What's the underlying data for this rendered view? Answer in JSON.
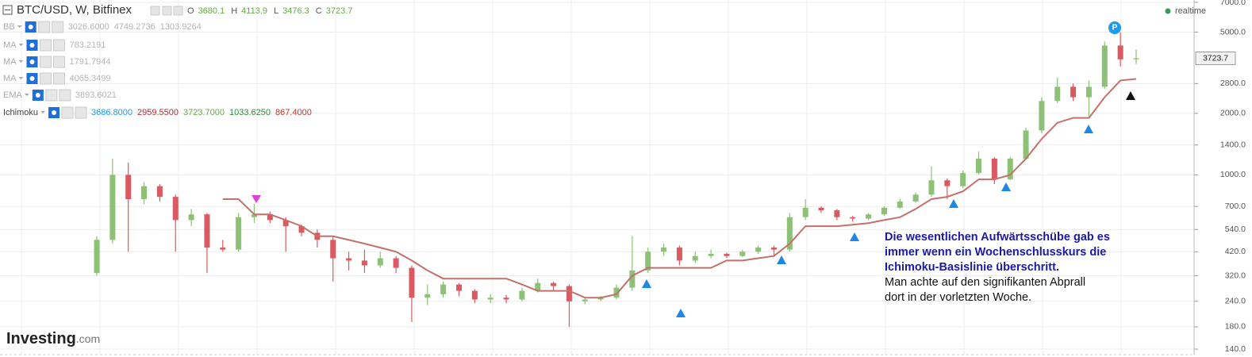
{
  "header": {
    "symbol": "BTC/USD, W, Bitfinex",
    "ohlc": [
      {
        "key": "O",
        "value": "3680.1"
      },
      {
        "key": "H",
        "value": "4113.9"
      },
      {
        "key": "L",
        "value": "3476.3"
      },
      {
        "key": "C",
        "value": "3723.7"
      }
    ]
  },
  "indicators": [
    {
      "name": "BB",
      "values": [
        "3026.6000",
        "4749.2736",
        "1303.9264"
      ],
      "colors": [
        "#b5b5b5",
        "#b5b5b5",
        "#b5b5b5"
      ]
    },
    {
      "name": "MA",
      "values": [
        "783.2191"
      ],
      "colors": [
        "#b5b5b5"
      ]
    },
    {
      "name": "MA",
      "values": [
        "1791.7944"
      ],
      "colors": [
        "#b5b5b5"
      ]
    },
    {
      "name": "MA",
      "values": [
        "4065.3499"
      ],
      "colors": [
        "#b5b5b5"
      ]
    },
    {
      "name": "EMA",
      "values": [
        "3893.6021"
      ],
      "colors": [
        "#b5b5b5"
      ]
    },
    {
      "name": "Ichimoku",
      "values": [
        "3686.8000",
        "2959.5500",
        "3723.7000",
        "1033.6250",
        "867.4000"
      ],
      "colors": [
        "#2196f3",
        "#a8333a",
        "#6aa84f",
        "#2e8b3a",
        "#c0392b"
      ]
    }
  ],
  "realtime": "realtime",
  "marker_label": "P",
  "annotation": {
    "blue": [
      "Die wesentlichen Aufwärtsschübe gab es",
      "immer wenn ein Wochenschlusskurs die",
      "Ichimoku-Basislinie überschritt."
    ],
    "black": [
      "Man achte auf den signifikanten Abprall",
      "dort in der vorletzten Woche."
    ]
  },
  "logo": {
    "main": "Investing",
    "suffix": ".com"
  },
  "chart_data": {
    "type": "candlestick",
    "log_scale": true,
    "grid": true,
    "up_color": "#8cc176",
    "down_color": "#db5a62",
    "kijun_color": "#c4706b",
    "ylim": [
      131.5,
      7188
    ],
    "yticks": [
      {
        "value": 140,
        "label": "140.0"
      },
      {
        "value": 180,
        "label": "180.0"
      },
      {
        "value": 240,
        "label": "240.0"
      },
      {
        "value": 320,
        "label": "320.0"
      },
      {
        "value": 420,
        "label": "420.0"
      },
      {
        "value": 540,
        "label": "540.0"
      },
      {
        "value": 700,
        "label": "700.0"
      },
      {
        "value": 1000,
        "label": "1000.0"
      },
      {
        "value": 1400,
        "label": "1400.0"
      },
      {
        "value": 2000,
        "label": "2000.0"
      },
      {
        "value": 2800,
        "label": "2800.0"
      },
      {
        "value": 5000,
        "label": "5000.0"
      },
      {
        "value": 7000,
        "label": "7000.0"
      }
    ],
    "last_price": {
      "value": 3723.7,
      "label": "3723.7"
    },
    "open": [
      330,
      480,
      1000,
      760,
      880,
      780,
      600,
      640,
      440,
      430,
      620,
      640,
      600,
      560,
      520,
      480,
      390,
      380,
      360,
      390,
      350,
      250,
      260,
      290,
      270,
      245,
      250,
      245,
      270,
      295,
      285,
      240,
      245,
      250,
      280,
      340,
      420,
      440,
      380,
      400,
      410,
      400,
      420,
      440,
      430,
      620,
      690,
      670,
      620,
      610,
      640,
      690,
      740,
      800,
      940,
      880,
      1020,
      1200,
      950,
      1200,
      1650,
      2300,
      2700,
      2400,
      2700,
      4300,
      3680.1
    ],
    "high": [
      500,
      1200,
      1150,
      920,
      900,
      800,
      680,
      650,
      480,
      650,
      720,
      660,
      620,
      570,
      540,
      500,
      420,
      430,
      420,
      400,
      360,
      290,
      300,
      295,
      275,
      260,
      258,
      280,
      310,
      300,
      290,
      250,
      255,
      290,
      500,
      440,
      460,
      450,
      420,
      430,
      415,
      430,
      450,
      450,
      650,
      760,
      700,
      680,
      630,
      650,
      700,
      760,
      820,
      1100,
      960,
      1050,
      1300,
      1220,
      1220,
      1700,
      2400,
      3000,
      2800,
      2900,
      4500,
      5000,
      4113.9
    ],
    "low": [
      320,
      460,
      420,
      720,
      740,
      420,
      560,
      330,
      420,
      420,
      580,
      580,
      420,
      500,
      440,
      300,
      340,
      330,
      350,
      330,
      190,
      230,
      250,
      255,
      235,
      235,
      235,
      240,
      265,
      270,
      180,
      232,
      240,
      245,
      270,
      330,
      400,
      360,
      370,
      390,
      390,
      395,
      410,
      400,
      420,
      600,
      650,
      600,
      590,
      600,
      630,
      680,
      730,
      780,
      760,
      860,
      1000,
      900,
      940,
      1180,
      1600,
      2250,
      2300,
      1900,
      2650,
      3400,
      3476.3
    ],
    "close": [
      480,
      1000,
      760,
      880,
      780,
      600,
      640,
      440,
      430,
      620,
      640,
      600,
      560,
      520,
      480,
      390,
      380,
      360,
      390,
      350,
      250,
      260,
      290,
      270,
      245,
      250,
      245,
      270,
      295,
      285,
      240,
      245,
      250,
      280,
      340,
      420,
      440,
      380,
      400,
      410,
      400,
      420,
      440,
      430,
      620,
      690,
      670,
      620,
      610,
      640,
      690,
      740,
      800,
      940,
      880,
      1020,
      1200,
      950,
      1200,
      1650,
      2300,
      2700,
      2400,
      2700,
      4300,
      3680,
      3723.7
    ],
    "kijun": [
      null,
      null,
      null,
      null,
      null,
      null,
      null,
      null,
      760,
      760,
      640,
      640,
      600,
      560,
      500,
      500,
      480,
      460,
      440,
      420,
      380,
      340,
      310,
      310,
      310,
      310,
      310,
      290,
      270,
      270,
      270,
      250,
      250,
      260,
      320,
      350,
      350,
      350,
      350,
      350,
      380,
      380,
      390,
      400,
      460,
      560,
      560,
      560,
      570,
      580,
      600,
      620,
      680,
      760,
      780,
      830,
      950,
      950,
      1000,
      1200,
      1500,
      1800,
      1900,
      1900,
      2400,
      2900,
      2950
    ]
  }
}
